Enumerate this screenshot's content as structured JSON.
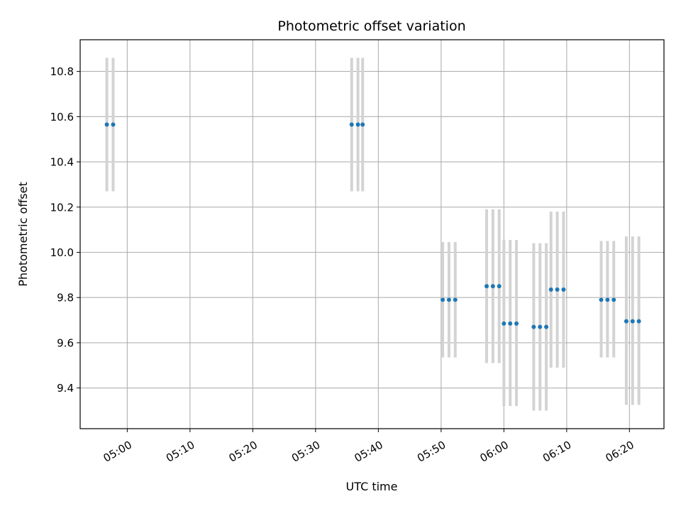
{
  "chart_data": {
    "type": "scatter",
    "title": "Photometric offset variation",
    "xlabel": "UTC time",
    "ylabel": "Photometric offset",
    "xlim": [
      "04:52:30",
      "06:25:30"
    ],
    "ylim": [
      9.22,
      10.94
    ],
    "x_ticks": [
      "05:00",
      "05:10",
      "05:20",
      "05:30",
      "05:40",
      "05:50",
      "06:00",
      "06:10",
      "06:20"
    ],
    "y_ticks": [
      "9.4",
      "9.6",
      "9.8",
      "10.0",
      "10.2",
      "10.4",
      "10.6",
      "10.8"
    ],
    "grid": true,
    "colors": {
      "points": "#1f77b4",
      "error_bars": "#d3d3d3",
      "grid": "#b0b0b0",
      "frame": "#000000"
    },
    "points": [
      {
        "x": "04:56:45",
        "y": 10.565,
        "yerr_low": 10.27,
        "yerr_high": 10.86
      },
      {
        "x": "04:57:45",
        "y": 10.565,
        "yerr_low": 10.27,
        "yerr_high": 10.86
      },
      {
        "x": "05:35:45",
        "y": 10.565,
        "yerr_low": 10.27,
        "yerr_high": 10.86
      },
      {
        "x": "05:36:45",
        "y": 10.565,
        "yerr_low": 10.27,
        "yerr_high": 10.86
      },
      {
        "x": "05:37:30",
        "y": 10.565,
        "yerr_low": 10.27,
        "yerr_high": 10.86
      },
      {
        "x": "05:50:15",
        "y": 9.79,
        "yerr_low": 9.535,
        "yerr_high": 10.045
      },
      {
        "x": "05:51:15",
        "y": 9.79,
        "yerr_low": 9.535,
        "yerr_high": 10.045
      },
      {
        "x": "05:52:15",
        "y": 9.79,
        "yerr_low": 9.535,
        "yerr_high": 10.045
      },
      {
        "x": "05:57:15",
        "y": 9.85,
        "yerr_low": 9.51,
        "yerr_high": 10.19
      },
      {
        "x": "05:58:15",
        "y": 9.85,
        "yerr_low": 9.51,
        "yerr_high": 10.19
      },
      {
        "x": "05:59:15",
        "y": 9.85,
        "yerr_low": 9.51,
        "yerr_high": 10.19
      },
      {
        "x": "06:00:00",
        "y": 9.685,
        "yerr_low": 9.32,
        "yerr_high": 10.055
      },
      {
        "x": "06:01:00",
        "y": 9.685,
        "yerr_low": 9.32,
        "yerr_high": 10.055
      },
      {
        "x": "06:02:00",
        "y": 9.685,
        "yerr_low": 9.32,
        "yerr_high": 10.055
      },
      {
        "x": "06:04:45",
        "y": 9.67,
        "yerr_low": 9.3,
        "yerr_high": 10.04
      },
      {
        "x": "06:05:45",
        "y": 9.67,
        "yerr_low": 9.3,
        "yerr_high": 10.04
      },
      {
        "x": "06:06:45",
        "y": 9.67,
        "yerr_low": 9.3,
        "yerr_high": 10.04
      },
      {
        "x": "06:07:30",
        "y": 9.835,
        "yerr_low": 9.49,
        "yerr_high": 10.18
      },
      {
        "x": "06:08:30",
        "y": 9.835,
        "yerr_low": 9.49,
        "yerr_high": 10.18
      },
      {
        "x": "06:09:30",
        "y": 9.835,
        "yerr_low": 9.49,
        "yerr_high": 10.18
      },
      {
        "x": "06:15:30",
        "y": 9.79,
        "yerr_low": 9.535,
        "yerr_high": 10.05
      },
      {
        "x": "06:16:30",
        "y": 9.79,
        "yerr_low": 9.535,
        "yerr_high": 10.05
      },
      {
        "x": "06:17:30",
        "y": 9.79,
        "yerr_low": 9.535,
        "yerr_high": 10.05
      },
      {
        "x": "06:19:30",
        "y": 9.695,
        "yerr_low": 9.325,
        "yerr_high": 10.07
      },
      {
        "x": "06:20:30",
        "y": 9.695,
        "yerr_low": 9.325,
        "yerr_high": 10.07
      },
      {
        "x": "06:21:30",
        "y": 9.695,
        "yerr_low": 9.325,
        "yerr_high": 10.07
      }
    ]
  }
}
